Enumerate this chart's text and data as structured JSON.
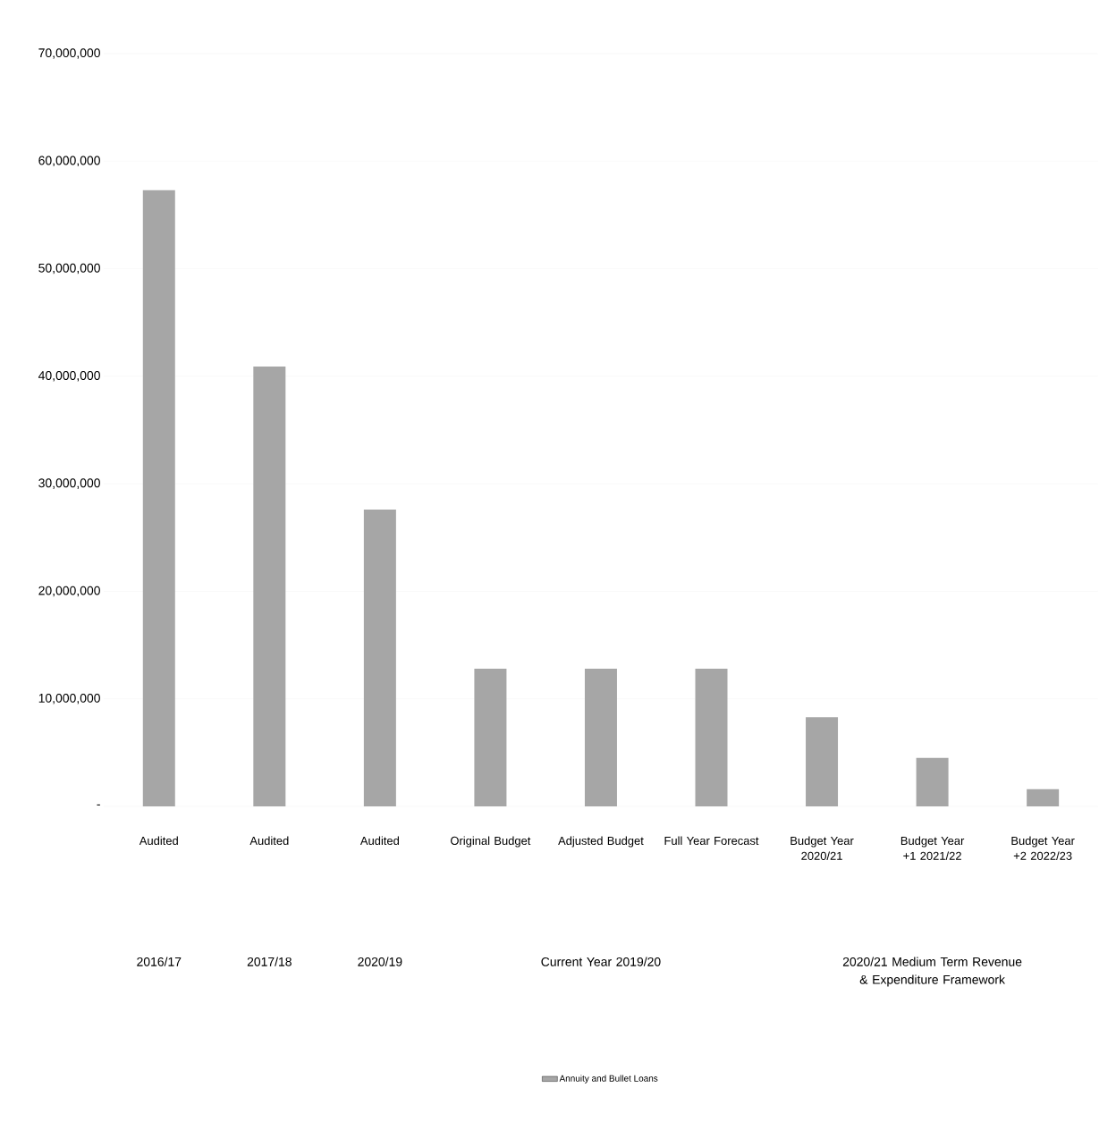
{
  "chart_data": {
    "type": "bar",
    "categories": [
      "Audited",
      "Audited",
      "Audited",
      "Original Budget",
      "Adjusted Budget",
      "Full Year Forecast",
      "Budget Year 2020/21",
      "Budget Year +1 2021/22",
      "Budget Year +2 2022/23"
    ],
    "series": [
      {
        "name": "Annuity and Bullet Loans",
        "color": "#a6a6a6",
        "values": [
          57300000,
          40900000,
          27600000,
          12800000,
          12800000,
          12800000,
          8300000,
          4500000,
          1600000
        ]
      }
    ],
    "ylim": [
      0,
      70000000
    ],
    "yticks": [
      {
        "value": 0,
        "label": "-"
      },
      {
        "value": 10000000,
        "label": "10,000,000"
      },
      {
        "value": 20000000,
        "label": "20,000,000"
      },
      {
        "value": 30000000,
        "label": "30,000,000"
      },
      {
        "value": 40000000,
        "label": "40,000,000"
      },
      {
        "value": 50000000,
        "label": "50,000,000"
      },
      {
        "value": 60000000,
        "label": "60,000,000"
      },
      {
        "value": 70000000,
        "label": "70,000,000"
      }
    ],
    "annotations": [
      "2016/17",
      "2017/18",
      "2020/19",
      "Current Year 2019/20",
      "2020/21 Medium Term Revenue & Expenditure Framework"
    ],
    "grid": "y",
    "legend": "bottom"
  }
}
